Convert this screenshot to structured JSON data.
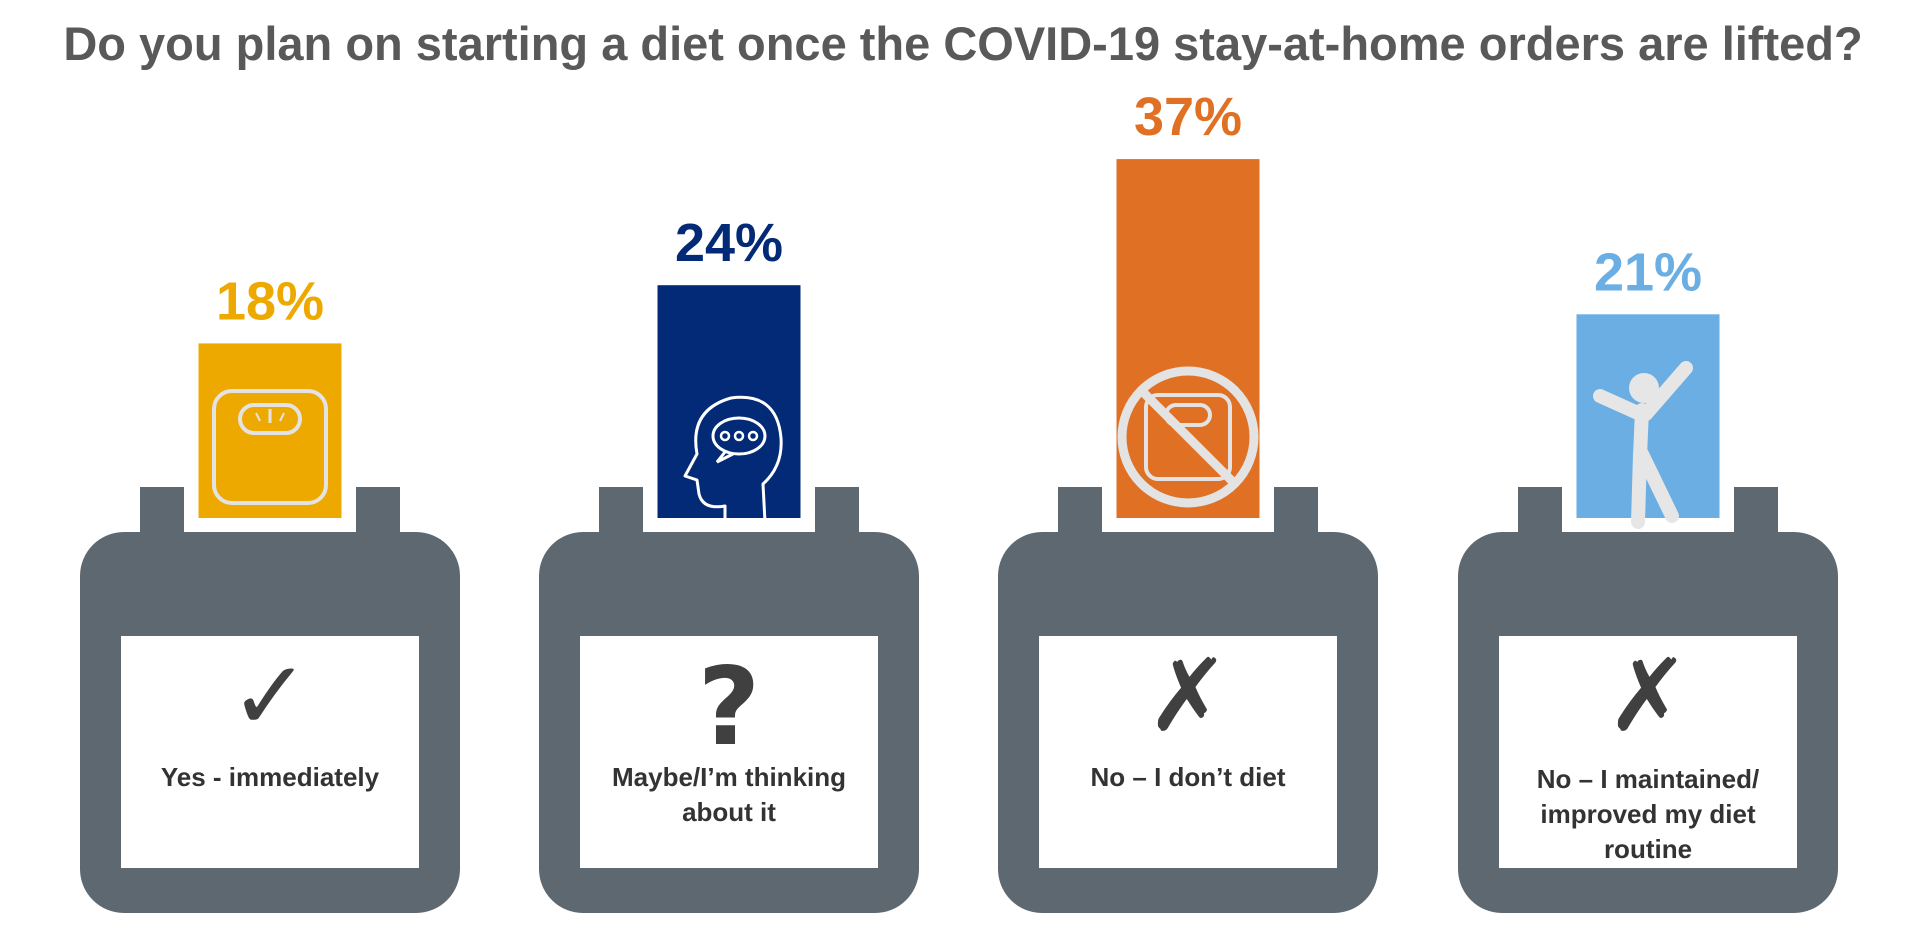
{
  "chart_data": {
    "type": "bar",
    "title": "Do you plan on starting a diet once the COVID-19 stay-at-home orders are lifted?",
    "categories": [
      "Yes - immediately",
      "Maybe/I’m thinking about it",
      "No – I don’t diet",
      "No – I maintained/ improved my diet routine"
    ],
    "values": [
      18,
      24,
      37,
      21
    ],
    "value_labels": [
      "18%",
      "24%",
      "37%",
      "21%"
    ],
    "bar_colors": [
      "#EEA900",
      "#032A77",
      "#E07124",
      "#6AAEE3"
    ],
    "icons": [
      "scale-icon",
      "thinking-head-icon",
      "no-scale-icon",
      "cheering-person-icon"
    ],
    "category_marks": [
      "✓",
      "?",
      "✗",
      "✗"
    ],
    "mark_icons": [
      "checkmark-icon",
      "question-mark-icon",
      "cross-icon",
      "cross-icon"
    ],
    "grid": false,
    "legend": "none",
    "ylim": [
      0,
      37
    ]
  },
  "colors": {
    "calendar": "#5E6870",
    "title": "#595959",
    "label": "#333333"
  }
}
